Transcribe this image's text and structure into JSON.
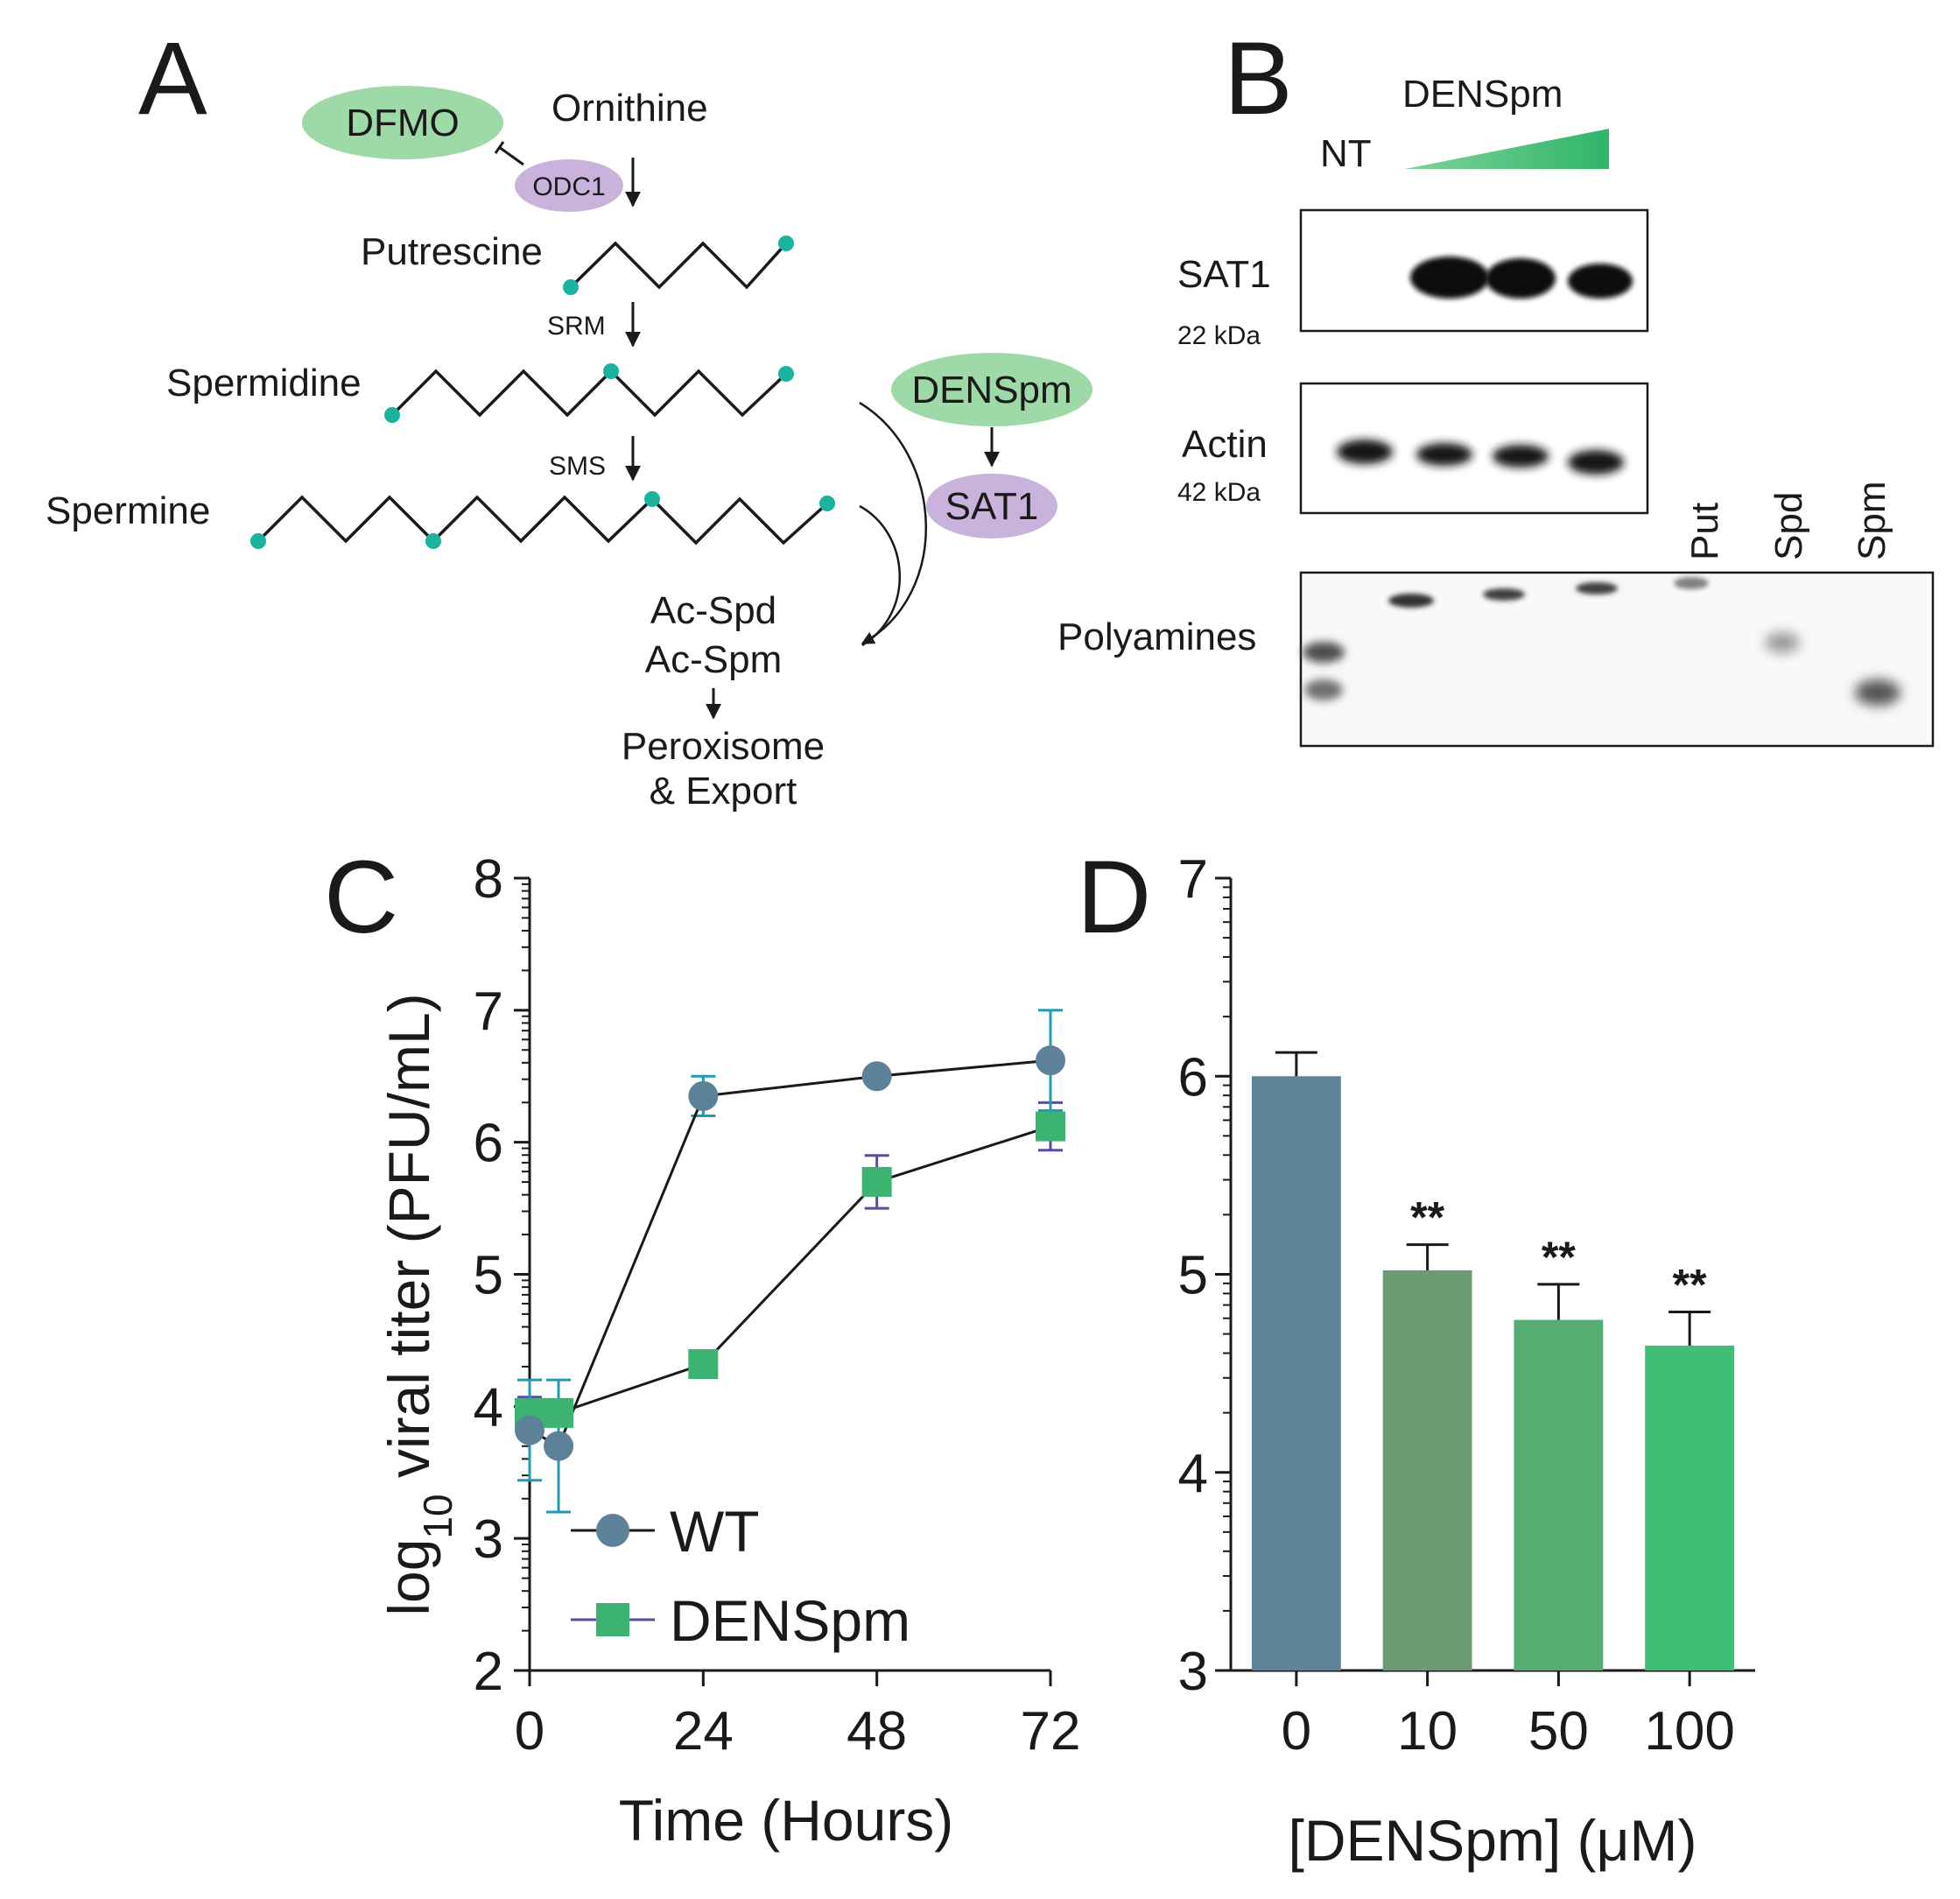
{
  "colors": {
    "wt": "#5c8198",
    "denspm": "#3cb371",
    "err_wt": "#1e9bb3",
    "err_denspm": "#5b4d9c",
    "green_fill": "#9ed9a8",
    "purple_fill": "#c9b3dd",
    "teal_dot": "#19b39e",
    "bars": [
      "#5f8499",
      "#6a9b72",
      "#55ad72",
      "#3fbf75"
    ]
  },
  "panelA": {
    "label": "A",
    "dfmo": "DFMO",
    "ornithine": "Ornithine",
    "odc1": "ODC1",
    "putrescine": "Putrescine",
    "srm": "SRM",
    "spermidine": "Spermidine",
    "sms": "SMS",
    "spermine": "Spermine",
    "denspm": "DENSpm",
    "sat1": "SAT1",
    "ac_spd": "Ac-Spd",
    "ac_spm": "Ac-Spm",
    "peroxisome": "Peroxisome",
    "export": "& Export"
  },
  "panelB": {
    "label": "B",
    "treatment": "DENSpm",
    "nt": "NT",
    "sat1": "SAT1",
    "sat1_kda": "22 kDa",
    "actin": "Actin",
    "actin_kda": "42 kDa",
    "polyamines": "Polyamines",
    "std_put": "Put",
    "std_spd": "Spd",
    "std_spm": "Spm"
  },
  "panelC": {
    "label": "C",
    "chart_data": {
      "type": "line",
      "x": [
        0,
        4,
        24,
        48,
        72
      ],
      "xticks": [
        0,
        24,
        48,
        72
      ],
      "xlim": [
        0,
        72
      ],
      "ylim": [
        2,
        8
      ],
      "yticks": [
        2,
        3,
        4,
        5,
        6,
        7,
        8
      ],
      "xlabel": "Time (Hours)",
      "ylabel_prefix": "log",
      "ylabel_sub": "10",
      "ylabel_rest": " viral titer (PFU/mL)",
      "legend_position": "bottom-left",
      "series": [
        {
          "name": "WT",
          "marker": "circle",
          "values": [
            3.82,
            3.7,
            6.35,
            6.5,
            6.62
          ],
          "errors": [
            0.38,
            0.5,
            0.15,
            0.05,
            0.38
          ]
        },
        {
          "name": "DENSpm",
          "marker": "square",
          "values": [
            3.95,
            3.95,
            4.32,
            5.7,
            6.12
          ],
          "errors": [
            0.12,
            0.1,
            0.05,
            0.2,
            0.18
          ]
        }
      ]
    }
  },
  "panelD": {
    "label": "D",
    "chart_data": {
      "type": "bar",
      "categories": [
        "0",
        "10",
        "50",
        "100"
      ],
      "values": [
        6.0,
        5.02,
        4.77,
        4.64
      ],
      "errors": [
        0.12,
        0.13,
        0.18,
        0.17
      ],
      "significance": [
        "",
        "**",
        "**",
        "**"
      ],
      "ylim": [
        3,
        7
      ],
      "yticks": [
        3,
        4,
        5,
        6,
        7
      ],
      "xlabel": "[DENSpm] (μM)",
      "ylabel": ""
    }
  }
}
